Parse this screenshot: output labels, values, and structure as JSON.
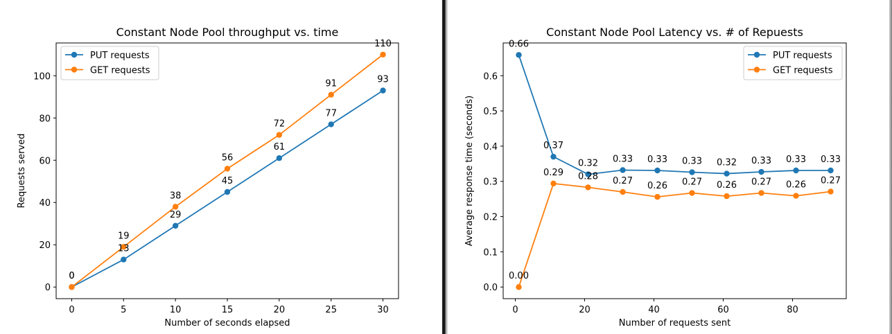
{
  "chart_data": [
    {
      "type": "line",
      "title": "Constant Node Pool throughput vs. time",
      "xlabel": "Number of seconds elapsed",
      "ylabel": "Requests served",
      "x": [
        0,
        5,
        10,
        15,
        20,
        25,
        30
      ],
      "xticks": [
        0,
        5,
        10,
        15,
        20,
        25,
        30
      ],
      "yticks": [
        0,
        20,
        40,
        60,
        80,
        100
      ],
      "xlim": [
        -1.5,
        31.5
      ],
      "ylim": [
        -5.5,
        115.5
      ],
      "legend": "top-left",
      "series": [
        {
          "name": "PUT requests",
          "color": "#1f77b4",
          "values": [
            0,
            13,
            29,
            45,
            61,
            77,
            93
          ],
          "labels": [
            "0",
            "13",
            "29",
            "45",
            "61",
            "77",
            "93"
          ]
        },
        {
          "name": "GET requests",
          "color": "#ff7f0e",
          "values": [
            0,
            19,
            38,
            56,
            72,
            91,
            110
          ],
          "labels": [
            "0",
            "19",
            "38",
            "56",
            "72",
            "91",
            "110"
          ]
        }
      ]
    },
    {
      "type": "line",
      "title": "Constant Node Pool Latency vs. # of Repuests",
      "xlabel": "Number of requests sent",
      "ylabel": "Average response time (seconds)",
      "x": [
        1,
        11,
        21,
        31,
        41,
        51,
        61,
        71,
        81,
        91
      ],
      "xticks": [
        0,
        20,
        40,
        60,
        80
      ],
      "yticks": [
        "0.0",
        "0.1",
        "0.2",
        "0.3",
        "0.4",
        "0.5",
        "0.6"
      ],
      "xlim": [
        -3.5,
        95.5
      ],
      "ylim": [
        -0.033,
        0.693
      ],
      "legend": "top-right",
      "series": [
        {
          "name": "PUT requests",
          "color": "#1f77b4",
          "values": [
            0.659,
            0.37,
            0.32,
            0.332,
            0.331,
            0.326,
            0.322,
            0.327,
            0.331,
            0.331
          ],
          "labels": [
            "0.66",
            "0.37",
            "0.32",
            "0.33",
            "0.33",
            "0.33",
            "0.32",
            "0.33",
            "0.33",
            "0.33"
          ]
        },
        {
          "name": "GET requests",
          "color": "#ff7f0e",
          "values": [
            0.0,
            0.294,
            0.283,
            0.27,
            0.256,
            0.267,
            0.258,
            0.267,
            0.259,
            0.271
          ],
          "labels": [
            "0.00",
            "0.29",
            "0.28",
            "0.27",
            "0.26",
            "0.27",
            "0.26",
            "0.27",
            "0.26",
            "0.27"
          ]
        }
      ]
    }
  ]
}
